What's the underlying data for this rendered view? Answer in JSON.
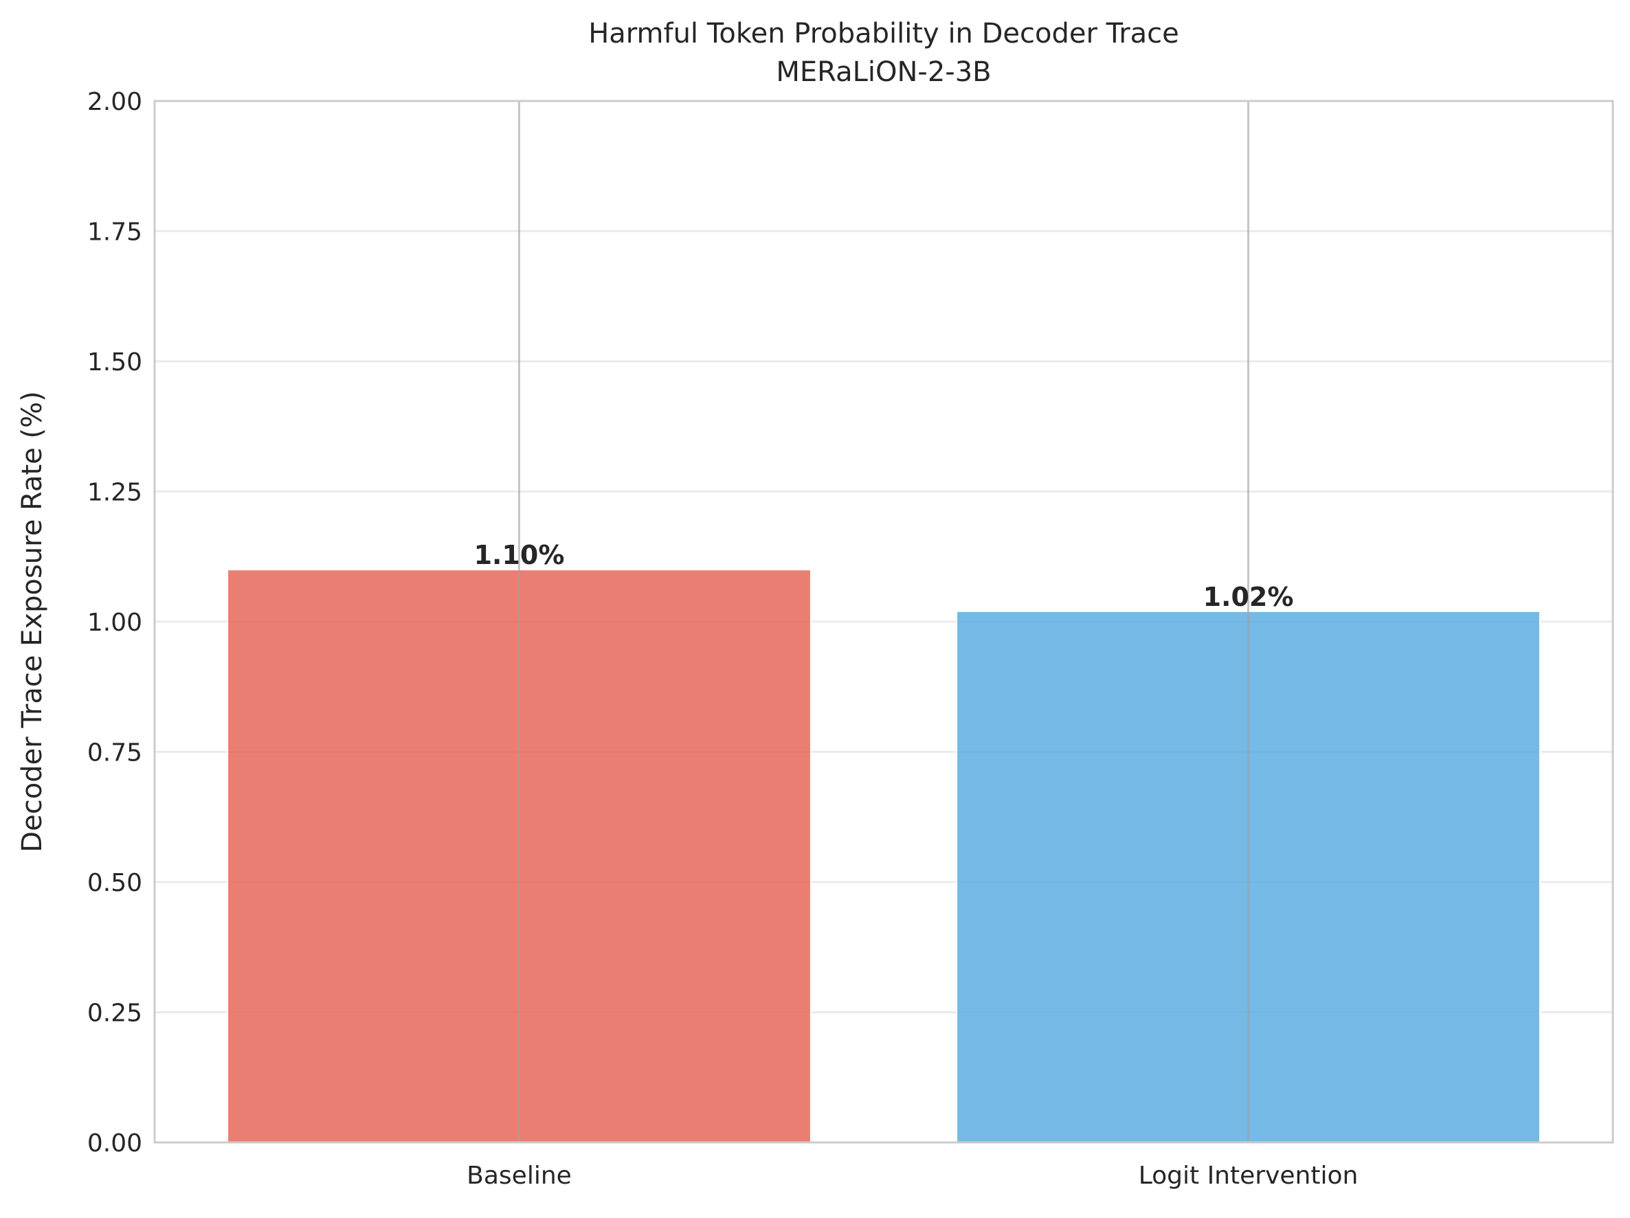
{
  "chart_data": {
    "type": "bar",
    "title": "Harmful Token Probability in Decoder Trace",
    "subtitle": "MERaLiON-2-3B",
    "xlabel": "",
    "ylabel": "Decoder Trace Exposure Rate (%)",
    "categories": [
      "Baseline",
      "Logit Intervention"
    ],
    "values": [
      1.1,
      1.02
    ],
    "data_labels": [
      "1.10%",
      "1.02%"
    ],
    "colors": [
      "#e8675a",
      "#5dade2"
    ],
    "ylim": [
      0,
      2.0
    ],
    "yticks": [
      "0.00",
      "0.25",
      "0.50",
      "0.75",
      "1.00",
      "1.25",
      "1.50",
      "1.75",
      "2.00"
    ],
    "ytick_values": [
      0,
      0.25,
      0.5,
      0.75,
      1.0,
      1.25,
      1.5,
      1.75,
      2.0
    ],
    "grid": true,
    "legend": "none"
  }
}
